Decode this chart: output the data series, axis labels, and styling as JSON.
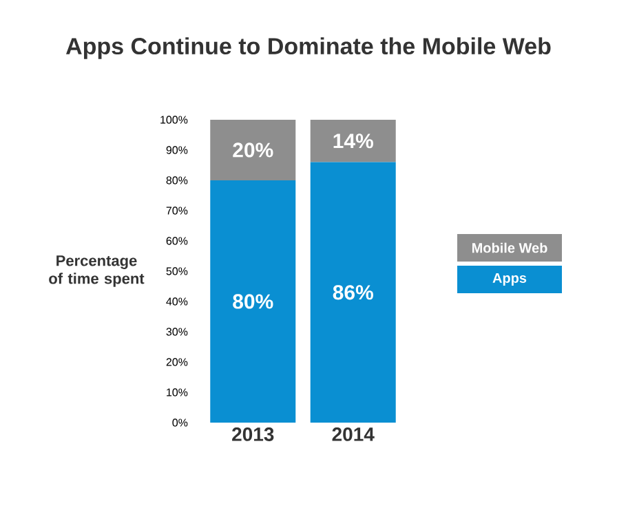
{
  "chart_data": {
    "type": "bar",
    "title": "Apps Continue to Dominate the Mobile Web",
    "ylabel": "Percentage of time spent",
    "categories": [
      "2013",
      "2014"
    ],
    "series": [
      {
        "name": "Apps",
        "color": "#0a8fd2",
        "values": [
          80,
          86
        ],
        "value_labels": [
          "80%",
          "86%"
        ]
      },
      {
        "name": "Mobile Web",
        "color": "#8e8e8e",
        "values": [
          20,
          14
        ],
        "value_labels": [
          "20%",
          "14%"
        ]
      }
    ],
    "stacked": true,
    "ylim": [
      0,
      100
    ],
    "yticks": [
      {
        "value": 0,
        "label": "0%"
      },
      {
        "value": 10,
        "label": "10%"
      },
      {
        "value": 20,
        "label": "20%"
      },
      {
        "value": 30,
        "label": "30%"
      },
      {
        "value": 40,
        "label": "40%"
      },
      {
        "value": 50,
        "label": "50%"
      },
      {
        "value": 60,
        "label": "60%"
      },
      {
        "value": 70,
        "label": "70%"
      },
      {
        "value": 80,
        "label": "80%"
      },
      {
        "value": 90,
        "label": "90%"
      },
      {
        "value": 100,
        "label": "100%"
      }
    ],
    "legend": "right"
  }
}
